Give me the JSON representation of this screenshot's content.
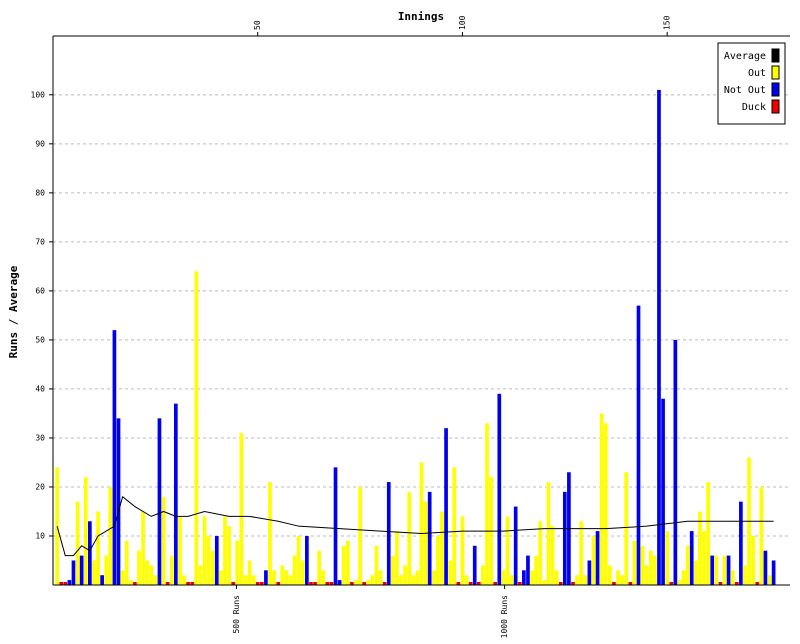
{
  "chart_data": {
    "type": "bar",
    "title": "Innings",
    "y_label": "Runs / Average",
    "xlim": [
      0,
      180
    ],
    "xticks": [
      50,
      100,
      150
    ],
    "ylim": [
      0,
      112
    ],
    "yticks": [
      10,
      20,
      30,
      40,
      50,
      60,
      70,
      80,
      90,
      100
    ],
    "grid": true,
    "legend": "top-right",
    "run_markers": [
      {
        "value": 44.8,
        "label": "500 Runs"
      },
      {
        "value": 110.3,
        "label": "1000 Runs"
      }
    ],
    "series": [
      {
        "name": "Average",
        "kind": "line",
        "color": "#000000",
        "x": [
          1,
          3,
          5,
          7,
          9,
          11,
          13,
          15,
          17,
          20,
          24,
          27,
          30,
          33,
          37,
          43,
          48,
          55,
          60,
          70,
          80,
          90,
          100,
          110,
          120,
          135,
          145,
          155,
          176
        ],
        "values": [
          12,
          6,
          6,
          8,
          7,
          10,
          11,
          12,
          18,
          16,
          14,
          15,
          14,
          14,
          15,
          14,
          14,
          13,
          12,
          11.5,
          11,
          10.5,
          11,
          11,
          11.5,
          11.5,
          12,
          13,
          13
        ]
      },
      {
        "name": "Out",
        "kind": "bar",
        "color": "#ffff00",
        "x": [
          1,
          6,
          8,
          10,
          11,
          13,
          14,
          17,
          18,
          19,
          21,
          22,
          23,
          24,
          25,
          27,
          29,
          31,
          32,
          35,
          36,
          37,
          38,
          39,
          41,
          42,
          43,
          45,
          46,
          47,
          48,
          49,
          53,
          54,
          56,
          57,
          58,
          59,
          60,
          61,
          65,
          66,
          71,
          72,
          74,
          75,
          77,
          78,
          79,
          80,
          83,
          84,
          85,
          86,
          87,
          88,
          89,
          90,
          91,
          93,
          94,
          95,
          97,
          98,
          100,
          101,
          105,
          106,
          107,
          110,
          111,
          112,
          117,
          118,
          119,
          120,
          121,
          122,
          123,
          128,
          129,
          130,
          132,
          134,
          135,
          136,
          138,
          139,
          140,
          142,
          144,
          145,
          146,
          147,
          150,
          153,
          154,
          155,
          157,
          158,
          159,
          160,
          162,
          164,
          166,
          169,
          170,
          171,
          173,
          175
        ],
        "values": [
          24,
          17,
          22,
          5,
          15,
          6,
          20,
          3,
          9,
          1,
          7,
          15,
          5,
          4,
          2,
          18,
          6,
          14,
          2,
          64,
          4,
          14,
          10,
          7,
          3,
          14,
          12,
          9,
          31,
          2,
          5,
          2,
          21,
          3,
          4,
          3,
          2,
          6,
          10,
          5,
          7,
          3,
          8,
          9,
          1,
          20,
          1,
          2,
          8,
          3,
          6,
          11,
          2,
          4,
          19,
          2,
          3,
          25,
          17,
          3,
          10,
          15,
          5,
          24,
          14,
          2,
          4,
          33,
          22,
          3,
          14,
          2,
          3,
          6,
          13,
          1,
          21,
          12,
          3,
          2,
          13,
          2,
          10,
          35,
          33,
          4,
          3,
          2,
          23,
          9,
          8,
          4,
          7,
          6,
          11,
          1,
          3,
          8,
          5,
          15,
          11,
          21,
          6,
          6,
          3,
          4,
          26,
          10,
          20,
          2
        ]
      },
      {
        "name": "Not Out",
        "kind": "bar",
        "color": "#0000ee",
        "x": [
          4,
          5,
          7,
          9,
          12,
          15,
          16,
          26,
          30,
          40,
          52,
          62,
          69,
          70,
          82,
          92,
          96,
          103,
          109,
          113,
          115,
          116,
          125,
          126,
          131,
          133,
          143,
          148,
          149,
          152,
          156,
          161,
          165,
          168,
          174,
          176
        ],
        "values": [
          1,
          5,
          6,
          13,
          2,
          52,
          34,
          34,
          37,
          10,
          3,
          10,
          24,
          1,
          21,
          19,
          32,
          8,
          39,
          16,
          3,
          6,
          19,
          23,
          5,
          11,
          57,
          101,
          38,
          50,
          11,
          6,
          6,
          17,
          7,
          5
        ]
      },
      {
        "name": "Duck",
        "kind": "bar",
        "color": "#ee0000",
        "x": [
          2,
          3,
          20,
          28,
          33,
          34,
          44,
          50,
          51,
          55,
          63,
          64,
          67,
          68,
          73,
          76,
          81,
          99,
          102,
          104,
          108,
          114,
          124,
          127,
          137,
          141,
          151,
          163,
          167,
          172
        ],
        "values": [
          0,
          0,
          0,
          0,
          0,
          0,
          0,
          0,
          0,
          0,
          0,
          0,
          0,
          0,
          0,
          0,
          0,
          0,
          0,
          0,
          0,
          0,
          0,
          0,
          0,
          0,
          0,
          0,
          0,
          0
        ]
      }
    ]
  }
}
